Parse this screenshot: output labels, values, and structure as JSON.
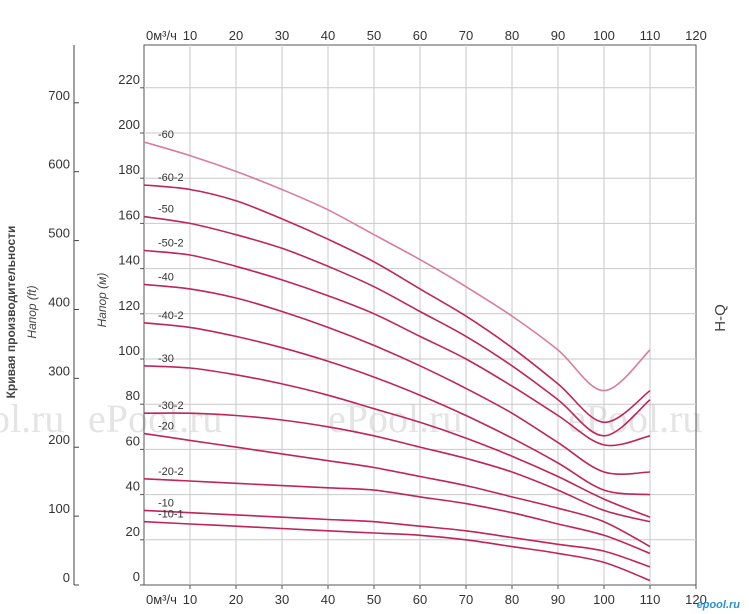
{
  "chart_data": {
    "type": "line",
    "title": "H-Q",
    "left_axis_title": "Кривая производительности",
    "left_axis_subtitle": "Напор (ft)",
    "ylabel": "Напор (м)",
    "xunit_label": "0м³/ч",
    "x_ticks": [
      "10",
      "20",
      "30",
      "40",
      "50",
      "60",
      "70",
      "80",
      "90",
      "100",
      "110",
      "120"
    ],
    "xlim": [
      0,
      120
    ],
    "ylim": [
      0,
      230
    ],
    "y_ticks_m": [
      "0",
      "20",
      "40",
      "60",
      "80",
      "100",
      "120",
      "140",
      "160",
      "180",
      "200",
      "220"
    ],
    "y_ticks_ft": [
      "0",
      "100",
      "200",
      "300",
      "400",
      "500",
      "600",
      "700"
    ],
    "grid": true,
    "series": [
      {
        "name": "-60",
        "color": "#d97d9c",
        "x": [
          0,
          10,
          20,
          30,
          40,
          50,
          60,
          70,
          80,
          90,
          100,
          110
        ],
        "y": [
          196,
          190,
          183,
          175,
          166,
          155,
          144,
          132,
          119,
          104,
          86,
          104
        ]
      },
      {
        "name": "-60-2",
        "color": "#c0255a",
        "x": [
          0,
          10,
          20,
          30,
          40,
          50,
          60,
          70,
          80,
          90,
          100,
          110
        ],
        "y": [
          177,
          175,
          170,
          162,
          153,
          143,
          131,
          119,
          105,
          89,
          72,
          86
        ]
      },
      {
        "name": "-50",
        "color": "#c0255a",
        "x": [
          0,
          10,
          20,
          30,
          40,
          50,
          60,
          70,
          80,
          90,
          100,
          110
        ],
        "y": [
          163,
          160,
          155,
          149,
          141,
          132,
          121,
          110,
          97,
          82,
          66,
          82
        ]
      },
      {
        "name": "-50-2",
        "color": "#c0255a",
        "x": [
          0,
          10,
          20,
          30,
          40,
          50,
          60,
          70,
          80,
          90,
          100,
          110
        ],
        "y": [
          148,
          146,
          141,
          135,
          128,
          120,
          110,
          100,
          88,
          75,
          62,
          66
        ]
      },
      {
        "name": "-40",
        "color": "#c0255a",
        "x": [
          0,
          10,
          20,
          30,
          40,
          50,
          60,
          70,
          80,
          90,
          100,
          110
        ],
        "y": [
          133,
          131,
          127,
          121,
          114,
          106,
          97,
          87,
          76,
          63,
          50,
          50
        ]
      },
      {
        "name": "-40-2",
        "color": "#c0255a",
        "x": [
          0,
          10,
          20,
          30,
          40,
          50,
          60,
          70,
          80,
          90,
          100,
          110
        ],
        "y": [
          116,
          114,
          110,
          105,
          99,
          92,
          84,
          75,
          65,
          54,
          42,
          40
        ]
      },
      {
        "name": "-30",
        "color": "#c0255a",
        "x": [
          0,
          10,
          20,
          30,
          40,
          50,
          60,
          70,
          80,
          90,
          100,
          110
        ],
        "y": [
          97,
          96,
          93,
          89,
          84,
          78,
          72,
          65,
          57,
          48,
          38,
          30
        ]
      },
      {
        "name": "-30-2",
        "color": "#c0255a",
        "x": [
          0,
          10,
          20,
          30,
          40,
          50,
          60,
          70,
          80,
          90,
          100,
          110
        ],
        "y": [
          76,
          76,
          75,
          73,
          70,
          66,
          61,
          56,
          50,
          42,
          33,
          28
        ]
      },
      {
        "name": "-20",
        "color": "#c0255a",
        "x": [
          0,
          10,
          20,
          30,
          40,
          50,
          60,
          70,
          80,
          90,
          100,
          110
        ],
        "y": [
          67,
          64,
          61,
          58,
          55,
          52,
          48,
          44,
          39,
          34,
          28,
          17
        ]
      },
      {
        "name": "-20-2",
        "color": "#c0255a",
        "x": [
          0,
          10,
          20,
          30,
          40,
          50,
          60,
          70,
          80,
          90,
          100,
          110
        ],
        "y": [
          47,
          46,
          45,
          44,
          43,
          42,
          39,
          36,
          32,
          27,
          22,
          14
        ]
      },
      {
        "name": "-10",
        "color": "#c0255a",
        "x": [
          0,
          10,
          20,
          30,
          40,
          50,
          60,
          70,
          80,
          90,
          100,
          110
        ],
        "y": [
          33,
          32,
          31,
          30,
          29,
          28,
          26,
          24,
          21,
          18,
          15,
          8
        ]
      },
      {
        "name": "-10-1",
        "color": "#c0255a",
        "x": [
          0,
          10,
          20,
          30,
          40,
          50,
          60,
          70,
          80,
          90,
          100,
          110
        ],
        "y": [
          28,
          27,
          26,
          25,
          24,
          23,
          22,
          20,
          17,
          14,
          10,
          2
        ]
      }
    ]
  },
  "watermark": "ePool.ru",
  "brand": "epool.ru"
}
